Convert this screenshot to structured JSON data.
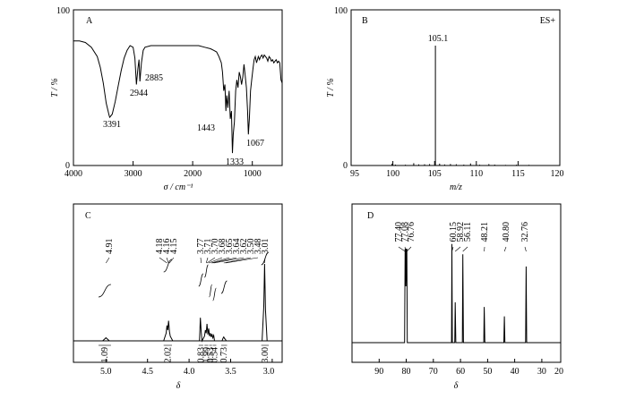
{
  "chart_data": [
    {
      "id": "A",
      "type": "line",
      "panel_label": "A",
      "xlabel": "σ / cm⁻¹",
      "ylabel": "T / %",
      "xlim": [
        4000,
        500
      ],
      "ylim": [
        0,
        100
      ],
      "x_ticks": [
        "4000",
        "3000",
        "2000",
        "1000"
      ],
      "y_ticks": [
        "0",
        "100"
      ],
      "series": [
        {
          "x": [
            4000,
            3900,
            3800,
            3700,
            3600,
            3550,
            3500,
            3450,
            3400,
            3391,
            3350,
            3300,
            3250,
            3200,
            3150,
            3100,
            3050,
            3000,
            2970,
            2944,
            2920,
            2900,
            2885,
            2860,
            2830,
            2800,
            2700,
            2600,
            2400,
            2200,
            2000,
            1900,
            1800,
            1700,
            1650,
            1600,
            1560,
            1520,
            1500,
            1480,
            1460,
            1443,
            1430,
            1410,
            1390,
            1370,
            1350,
            1333,
            1320,
            1300,
            1280,
            1260,
            1240,
            1220,
            1200,
            1180,
            1160,
            1140,
            1120,
            1100,
            1080,
            1067,
            1050,
            1030,
            1010,
            990,
            970,
            950,
            930,
            900,
            880,
            860,
            840,
            820,
            800,
            780,
            760,
            740,
            720,
            700,
            680,
            660,
            640,
            620,
            600,
            580,
            560,
            540,
            520,
            500
          ],
          "y": [
            80,
            80,
            79,
            76,
            70,
            63,
            53,
            40,
            32,
            31,
            33,
            41,
            51,
            61,
            69,
            74,
            77,
            76,
            69,
            52,
            62,
            68,
            54,
            66,
            74,
            76,
            77,
            77,
            77,
            77,
            77,
            77,
            76,
            75,
            74,
            73,
            70,
            66,
            60,
            48,
            52,
            35,
            45,
            37,
            48,
            30,
            35,
            8,
            20,
            28,
            48,
            55,
            50,
            60,
            57,
            52,
            57,
            65,
            58,
            50,
            35,
            20,
            30,
            48,
            55,
            62,
            68,
            70,
            66,
            70,
            68,
            70,
            71,
            69,
            71,
            70,
            69,
            67,
            70,
            69,
            67,
            68,
            66,
            67,
            68,
            66,
            67,
            66,
            55,
            53
          ]
        }
      ],
      "annotations": [
        {
          "x": 3391,
          "text": "3391"
        },
        {
          "x": 2944,
          "text": "2944"
        },
        {
          "x": 2885,
          "text": "2885"
        },
        {
          "x": 1443,
          "text": "1443"
        },
        {
          "x": 1333,
          "text": "1333"
        },
        {
          "x": 1067,
          "text": "1067"
        }
      ]
    },
    {
      "id": "B",
      "type": "bar",
      "panel_label": "B",
      "mode_label": "ES+",
      "xlabel": "m/z",
      "ylabel": "T / %",
      "xlim": [
        95,
        120
      ],
      "ylim": [
        0,
        100
      ],
      "x_ticks": [
        "95",
        "100",
        "105",
        "110",
        "115",
        "120"
      ],
      "y_ticks": [
        "0",
        "100"
      ],
      "series": [
        {
          "x": [
            99.9,
            100.3,
            101.5,
            102.5,
            103.1,
            103.8,
            104.4,
            105.1,
            105.6,
            106.2,
            106.9,
            107.6,
            108.5,
            109.3,
            110.4,
            111.5,
            112.2,
            113.5,
            114.8,
            116.3,
            117.7,
            118.9
          ],
          "y": [
            1.2,
            0.6,
            0.5,
            1.5,
            0.7,
            0.8,
            0.9,
            77,
            1.2,
            0.7,
            1.0,
            0.8,
            0.6,
            1.3,
            0.5,
            0.9,
            0.6,
            0.4,
            0.5,
            0.4,
            0.3,
            0.3
          ]
        }
      ],
      "annotations": [
        {
          "x": 105.1,
          "text": "105.1"
        }
      ]
    },
    {
      "id": "C",
      "type": "line",
      "panel_label": "C",
      "xlabel": "δ",
      "xlim": [
        5.3,
        2.8
      ],
      "x_ticks": [
        "5.0",
        "4.5",
        "4.0",
        "3.5",
        "3.0"
      ],
      "series": [
        {
          "x": [
            5.3,
            4.95,
            4.93,
            4.91,
            4.89,
            4.87,
            4.22,
            4.19,
            4.18,
            4.17,
            4.16,
            4.15,
            4.14,
            4.11,
            3.79,
            3.78,
            3.77,
            3.76,
            3.73,
            3.72,
            3.71,
            3.7,
            3.69,
            3.68,
            3.67,
            3.66,
            3.65,
            3.64,
            3.63,
            3.62,
            3.61,
            3.52,
            3.51,
            3.5,
            3.49,
            3.48,
            3.47,
            3.04,
            3.02,
            3.01,
            3.0,
            2.98,
            2.8
          ],
          "y": [
            0,
            0,
            2,
            4,
            2,
            0,
            0,
            10,
            20,
            14,
            26,
            12,
            6,
            0,
            0,
            30,
            12,
            0,
            6,
            14,
            10,
            22,
            8,
            16,
            6,
            10,
            5,
            9,
            4,
            7,
            0,
            0,
            3,
            5,
            3,
            2,
            0,
            0,
            45,
            100,
            40,
            0,
            0
          ]
        }
      ],
      "peak_labels": [
        "4.91",
        "4.18",
        "4.16",
        "4.15",
        "3.77",
        "3.71",
        "3.70",
        "3.68",
        "3.65",
        "3.64",
        "3.62",
        "3.50",
        "3.48",
        "3.01"
      ],
      "integrals": [
        {
          "x1": 5.0,
          "x2": 4.85,
          "value": "1.09"
        },
        {
          "x1": 4.22,
          "x2": 4.12,
          "value": "2.02"
        },
        {
          "x1": 3.8,
          "x2": 3.745,
          "value": "0.83"
        },
        {
          "x1": 3.73,
          "x2": 3.685,
          "value": "1.99"
        },
        {
          "x1": 3.675,
          "x2": 3.64,
          "value": "0.53"
        },
        {
          "x1": 3.63,
          "x2": 3.59,
          "value": "0.54"
        },
        {
          "x1": 3.53,
          "x2": 3.46,
          "value": "0.73"
        },
        {
          "x1": 3.05,
          "x2": 2.96,
          "value": "3.00"
        }
      ]
    },
    {
      "id": "D",
      "type": "line",
      "panel_label": "D",
      "xlabel": "δ",
      "xlim": [
        97,
        20
      ],
      "x_ticks": [
        "90",
        "80",
        "70",
        "60",
        "50",
        "40",
        "30",
        "20"
      ],
      "series": [
        {
          "x": [
            97,
            77.6,
            77.4,
            77.3,
            77.08,
            76.9,
            76.76,
            76.6,
            60.3,
            60.15,
            60.0,
            59.1,
            58.92,
            58.7,
            56.3,
            56.11,
            55.9,
            48.4,
            48.21,
            48.0,
            41.0,
            40.8,
            40.6,
            32.96,
            32.76,
            32.56,
            20
          ],
          "y": [
            0,
            0,
            100,
            60,
            100,
            60,
            100,
            0,
            0,
            105,
            0,
            0,
            43,
            0,
            0,
            94,
            0,
            0,
            38,
            0,
            0,
            28,
            0,
            0,
            81,
            0,
            0
          ]
        }
      ],
      "peak_labels": [
        "77.40",
        "77.08",
        "76.76",
        "60.15",
        "58.92",
        "56.11",
        "48.21",
        "40.80",
        "32.76"
      ]
    }
  ]
}
